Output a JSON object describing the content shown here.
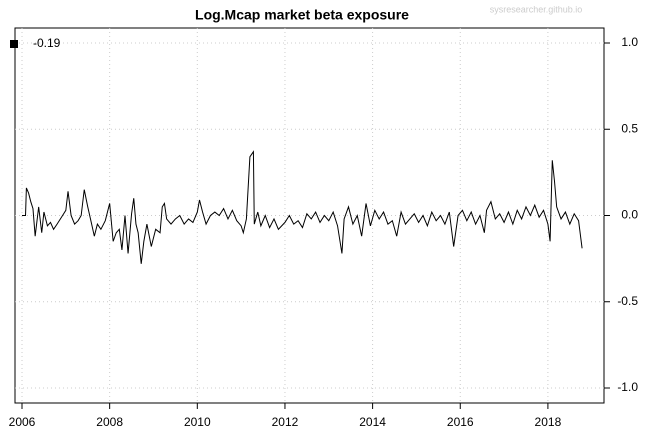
{
  "chart_data": {
    "type": "line",
    "title": "Log.Mcap market beta exposure",
    "watermark": "sysresearcher.github.io",
    "x": [
      2006.0,
      2006.08,
      2006.1,
      2006.15,
      2006.2,
      2006.25,
      2006.3,
      2006.38,
      2006.45,
      2006.5,
      2006.58,
      2006.65,
      2006.72,
      2006.8,
      2006.9,
      2007.0,
      2007.05,
      2007.12,
      2007.2,
      2007.28,
      2007.35,
      2007.42,
      2007.5,
      2007.58,
      2007.65,
      2007.72,
      2007.8,
      2007.9,
      2008.0,
      2008.08,
      2008.15,
      2008.22,
      2008.28,
      2008.35,
      2008.42,
      2008.5,
      2008.55,
      2008.6,
      2008.65,
      2008.72,
      2008.78,
      2008.85,
      2008.95,
      2009.05,
      2009.15,
      2009.2,
      2009.25,
      2009.3,
      2009.4,
      2009.5,
      2009.6,
      2009.7,
      2009.8,
      2009.9,
      2010.0,
      2010.05,
      2010.12,
      2010.2,
      2010.3,
      2010.4,
      2010.5,
      2010.6,
      2010.7,
      2010.8,
      2010.9,
      2011.0,
      2011.05,
      2011.12,
      2011.2,
      2011.28,
      2011.3,
      2011.38,
      2011.45,
      2011.55,
      2011.65,
      2011.75,
      2011.85,
      2012.0,
      2012.1,
      2012.2,
      2012.3,
      2012.4,
      2012.5,
      2012.6,
      2012.7,
      2012.8,
      2012.9,
      2013.0,
      2013.1,
      2013.2,
      2013.3,
      2013.35,
      2013.45,
      2013.55,
      2013.65,
      2013.75,
      2013.85,
      2013.95,
      2014.05,
      2014.15,
      2014.25,
      2014.35,
      2014.45,
      2014.55,
      2014.65,
      2014.75,
      2014.85,
      2014.95,
      2015.05,
      2015.15,
      2015.25,
      2015.35,
      2015.45,
      2015.55,
      2015.65,
      2015.75,
      2015.85,
      2015.95,
      2016.05,
      2016.15,
      2016.25,
      2016.35,
      2016.45,
      2016.55,
      2016.6,
      2016.7,
      2016.8,
      2016.9,
      2017.0,
      2017.1,
      2017.2,
      2017.3,
      2017.4,
      2017.5,
      2017.6,
      2017.7,
      2017.8,
      2017.9,
      2018.0,
      2018.05,
      2018.1,
      2018.15,
      2018.2,
      2018.3,
      2018.4,
      2018.5,
      2018.6,
      2018.7,
      2018.78
    ],
    "series": [
      {
        "name": "-0.19",
        "color": "#000000",
        "values": [
          0.0,
          0.0,
          0.16,
          0.13,
          0.08,
          0.04,
          -0.12,
          0.05,
          -0.1,
          0.02,
          -0.06,
          -0.04,
          -0.08,
          -0.05,
          -0.01,
          0.03,
          0.14,
          0.0,
          -0.05,
          -0.03,
          0.0,
          0.15,
          0.05,
          -0.04,
          -0.12,
          -0.05,
          -0.08,
          -0.03,
          0.07,
          -0.15,
          -0.1,
          -0.08,
          -0.2,
          0.0,
          -0.22,
          0.01,
          0.1,
          -0.05,
          -0.1,
          -0.28,
          -0.15,
          -0.05,
          -0.18,
          -0.08,
          -0.1,
          0.05,
          0.07,
          -0.02,
          -0.05,
          -0.02,
          0.0,
          -0.05,
          -0.02,
          -0.04,
          0.02,
          0.09,
          0.02,
          -0.05,
          0.0,
          0.02,
          0.0,
          0.04,
          -0.02,
          0.03,
          -0.03,
          -0.06,
          -0.1,
          -0.02,
          0.34,
          0.37,
          -0.05,
          0.02,
          -0.06,
          0.0,
          -0.07,
          -0.02,
          -0.08,
          -0.04,
          0.0,
          -0.05,
          -0.03,
          -0.07,
          0.01,
          -0.02,
          0.02,
          -0.04,
          0.0,
          -0.03,
          0.02,
          -0.06,
          -0.22,
          -0.02,
          0.05,
          -0.05,
          0.0,
          -0.12,
          0.07,
          -0.06,
          0.03,
          -0.02,
          0.02,
          -0.05,
          -0.03,
          -0.12,
          0.02,
          -0.05,
          -0.02,
          0.01,
          -0.04,
          0.0,
          -0.06,
          0.02,
          -0.03,
          0.0,
          -0.05,
          0.02,
          -0.18,
          0.0,
          0.03,
          -0.03,
          0.02,
          -0.05,
          0.0,
          -0.1,
          0.03,
          0.08,
          -0.02,
          0.01,
          -0.04,
          0.02,
          -0.05,
          0.03,
          -0.02,
          0.05,
          0.0,
          0.06,
          -0.01,
          0.03,
          -0.05,
          -0.15,
          0.32,
          0.2,
          0.05,
          -0.02,
          0.02,
          -0.05,
          0.01,
          -0.03,
          -0.19
        ]
      }
    ],
    "xlim": [
      2005.84,
      2019.28
    ],
    "xticks": [
      2006,
      2008,
      2010,
      2012,
      2014,
      2016,
      2018
    ],
    "ylim": [
      -1.087,
      1.087
    ],
    "yticks": [
      {
        "value": 1,
        "label": "1.0"
      },
      {
        "value": 0.5,
        "label": "0.5"
      },
      {
        "value": 0,
        "label": "0.0"
      },
      {
        "value": -0.5,
        "label": "-0.5"
      },
      {
        "value": -1,
        "label": "-1.0"
      }
    ],
    "grid": true,
    "legend": "top-left"
  }
}
